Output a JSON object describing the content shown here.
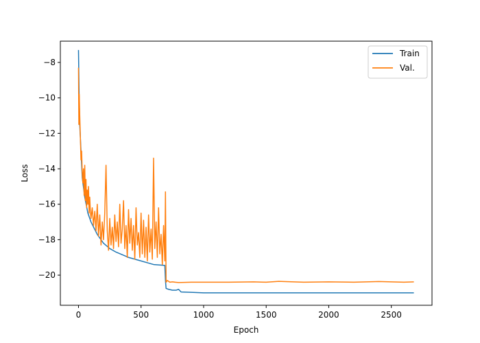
{
  "chart_data": {
    "type": "line",
    "title": "",
    "xlabel": "Epoch",
    "ylabel": "Loss",
    "xlim": [
      -145,
      2825
    ],
    "ylim": [
      -21.7,
      -6.8
    ],
    "xticks": [
      0,
      500,
      1000,
      1500,
      2000,
      2500
    ],
    "xtick_labels": [
      "0",
      "500",
      "1000",
      "1500",
      "2000",
      "2500"
    ],
    "yticks": [
      -20,
      -18,
      -16,
      -14,
      -12,
      -10,
      -8
    ],
    "ytick_labels": [
      "−20",
      "−18",
      "−16",
      "−14",
      "−12",
      "−10",
      "−8"
    ],
    "grid": false,
    "legend_position": "top-right",
    "series": [
      {
        "name": "Train",
        "color": "#1f77b4",
        "x": [
          0,
          5,
          10,
          20,
          30,
          50,
          75,
          100,
          150,
          200,
          250,
          300,
          400,
          500,
          600,
          690,
          695,
          700,
          720,
          750,
          780,
          800,
          820,
          900,
          1000,
          1200,
          1500,
          2000,
          2500,
          2680
        ],
        "values": [
          -7.3,
          -9.8,
          -11.5,
          -13.0,
          -14.5,
          -15.6,
          -16.5,
          -17.0,
          -17.7,
          -18.2,
          -18.5,
          -18.7,
          -19.0,
          -19.2,
          -19.4,
          -19.45,
          -20.3,
          -20.75,
          -20.8,
          -20.85,
          -20.85,
          -20.8,
          -20.95,
          -20.97,
          -21.0,
          -21.0,
          -21.0,
          -21.0,
          -21.0,
          -21.0
        ]
      },
      {
        "name": "Val.",
        "color": "#ff7f0e",
        "x": [
          0,
          3,
          6,
          10,
          15,
          20,
          25,
          30,
          35,
          40,
          45,
          50,
          55,
          60,
          65,
          70,
          75,
          80,
          85,
          90,
          95,
          100,
          110,
          120,
          130,
          140,
          150,
          160,
          170,
          180,
          190,
          200,
          210,
          220,
          230,
          240,
          250,
          260,
          270,
          280,
          290,
          300,
          310,
          320,
          330,
          340,
          350,
          360,
          370,
          380,
          390,
          400,
          410,
          420,
          430,
          440,
          450,
          460,
          470,
          480,
          490,
          500,
          510,
          520,
          530,
          540,
          550,
          560,
          570,
          580,
          590,
          600,
          610,
          620,
          630,
          640,
          650,
          660,
          670,
          680,
          685,
          690,
          695,
          700,
          710,
          720,
          730,
          750,
          800,
          900,
          1000,
          1200,
          1400,
          1500,
          1600,
          1800,
          2000,
          2200,
          2400,
          2600,
          2680
        ],
        "values": [
          -8.3,
          -11.5,
          -9.8,
          -11.0,
          -12.2,
          -13.5,
          -13.0,
          -14.2,
          -14.8,
          -14.0,
          -15.5,
          -13.8,
          -15.8,
          -14.6,
          -16.2,
          -15.2,
          -16.0,
          -15.0,
          -16.5,
          -15.6,
          -16.4,
          -16.8,
          -16.2,
          -17.2,
          -16.4,
          -17.5,
          -16.0,
          -17.8,
          -16.6,
          -18.3,
          -17.0,
          -18.0,
          -16.5,
          -13.8,
          -17.5,
          -18.6,
          -16.8,
          -18.3,
          -17.3,
          -18.5,
          -16.6,
          -18.1,
          -17.0,
          -18.4,
          -16.0,
          -18.2,
          -17.4,
          -15.8,
          -18.5,
          -17.2,
          -19.0,
          -16.3,
          -18.2,
          -16.8,
          -18.6,
          -17.2,
          -19.1,
          -16.2,
          -18.3,
          -17.6,
          -19.0,
          -16.5,
          -18.8,
          -16.9,
          -19.0,
          -17.3,
          -19.2,
          -16.6,
          -18.7,
          -17.4,
          -19.1,
          -13.4,
          -18.5,
          -17.0,
          -19.0,
          -16.2,
          -18.8,
          -17.7,
          -19.4,
          -17.2,
          -18.2,
          -19.2,
          -15.3,
          -20.4,
          -20.3,
          -20.35,
          -20.4,
          -20.38,
          -20.42,
          -20.4,
          -20.4,
          -20.4,
          -20.38,
          -20.4,
          -20.35,
          -20.4,
          -20.38,
          -20.4,
          -20.36,
          -20.4,
          -20.38
        ]
      }
    ]
  }
}
